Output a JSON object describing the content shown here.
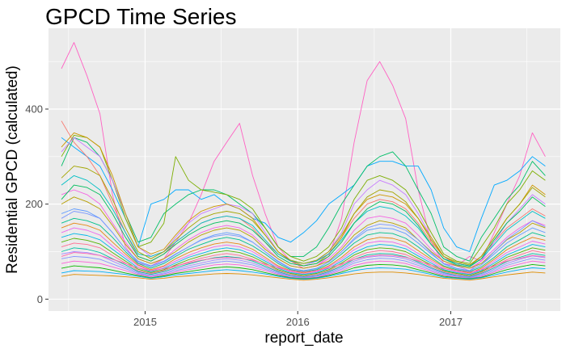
{
  "chart_data": {
    "type": "line",
    "title": "GPCD Time Series",
    "xlabel": "report_date",
    "ylabel": "Residential GPCD (calculated)",
    "x_ticks": [
      "2015",
      "2016",
      "2017"
    ],
    "y_ticks": [
      0,
      200,
      400
    ],
    "xlim": [
      "2014-05-15",
      "2017-09-20"
    ],
    "ylim": [
      -25,
      570
    ],
    "grid": true,
    "legend": "none",
    "panel_color": "#ebebeb",
    "grid_color": "#ffffff",
    "x": [
      "2014-06-15",
      "2014-07-15",
      "2014-08-15",
      "2014-09-15",
      "2014-10-15",
      "2014-11-15",
      "2014-12-15",
      "2015-01-15",
      "2015-02-15",
      "2015-03-15",
      "2015-04-15",
      "2015-05-15",
      "2015-06-15",
      "2015-07-15",
      "2015-08-15",
      "2015-09-15",
      "2015-10-15",
      "2015-11-15",
      "2015-12-15",
      "2016-01-15",
      "2016-02-15",
      "2016-03-15",
      "2016-04-15",
      "2016-05-15",
      "2016-06-15",
      "2016-07-15",
      "2016-08-15",
      "2016-09-15",
      "2016-10-15",
      "2016-11-15",
      "2016-12-15",
      "2017-01-15",
      "2017-02-15",
      "2017-03-15",
      "2017-04-15",
      "2017-05-15",
      "2017-06-15",
      "2017-07-15",
      "2017-08-15"
    ],
    "series": [
      {
        "color": "#ff61c3",
        "values": [
          485,
          540,
          470,
          390,
          220,
          110,
          75,
          70,
          85,
          120,
          160,
          220,
          290,
          330,
          370,
          260,
          180,
          110,
          80,
          65,
          70,
          90,
          170,
          330,
          460,
          500,
          450,
          380,
          230,
          120,
          75,
          70,
          90,
          80,
          140,
          200,
          260,
          350,
          300
        ]
      },
      {
        "color": "#00a9ff",
        "values": [
          340,
          320,
          300,
          280,
          230,
          170,
          110,
          200,
          210,
          230,
          230,
          210,
          220,
          200,
          190,
          170,
          160,
          130,
          120,
          140,
          165,
          200,
          220,
          240,
          280,
          290,
          290,
          280,
          280,
          230,
          150,
          110,
          100,
          170,
          240,
          250,
          270,
          300,
          280
        ]
      },
      {
        "color": "#00be67",
        "values": [
          280,
          340,
          330,
          300,
          250,
          180,
          120,
          130,
          180,
          200,
          220,
          230,
          230,
          220,
          200,
          180,
          150,
          110,
          90,
          90,
          110,
          150,
          200,
          240,
          280,
          300,
          310,
          280,
          230,
          180,
          110,
          90,
          80,
          130,
          170,
          210,
          240,
          290,
          260
        ]
      },
      {
        "color": "#f8766d",
        "values": [
          375,
          330,
          300,
          260,
          200,
          140,
          90,
          80,
          95,
          120,
          140,
          160,
          170,
          175,
          170,
          150,
          120,
          95,
          80,
          75,
          80,
          95,
          130,
          170,
          200,
          210,
          205,
          190,
          160,
          120,
          90,
          75,
          70,
          90,
          120,
          150,
          170,
          190,
          175
        ]
      },
      {
        "color": "#7cae00",
        "values": [
          300,
          345,
          340,
          320,
          250,
          170,
          110,
          120,
          160,
          300,
          250,
          230,
          225,
          220,
          210,
          190,
          150,
          110,
          90,
          80,
          90,
          110,
          150,
          210,
          250,
          260,
          250,
          230,
          190,
          140,
          95,
          80,
          75,
          110,
          150,
          200,
          230,
          270,
          250
        ]
      },
      {
        "color": "#c77cff",
        "values": [
          310,
          340,
          320,
          300,
          250,
          180,
          110,
          90,
          100,
          130,
          160,
          180,
          190,
          200,
          195,
          180,
          140,
          100,
          80,
          70,
          80,
          100,
          140,
          200,
          230,
          250,
          240,
          220,
          180,
          130,
          90,
          70,
          60,
          80,
          120,
          160,
          190,
          220,
          200
        ]
      },
      {
        "color": "#cd9600",
        "values": [
          320,
          350,
          340,
          320,
          260,
          180,
          110,
          95,
          105,
          135,
          165,
          185,
          195,
          200,
          190,
          170,
          135,
          100,
          80,
          70,
          75,
          95,
          130,
          180,
          210,
          220,
          215,
          200,
          170,
          130,
          90,
          75,
          70,
          90,
          130,
          170,
          200,
          240,
          220
        ]
      },
      {
        "color": "#00bfc4",
        "values": [
          240,
          260,
          250,
          230,
          190,
          140,
          95,
          90,
          100,
          120,
          140,
          160,
          170,
          175,
          170,
          155,
          125,
          95,
          80,
          75,
          80,
          95,
          125,
          160,
          185,
          195,
          190,
          175,
          150,
          115,
          85,
          75,
          70,
          85,
          115,
          145,
          165,
          185,
          170
        ]
      },
      {
        "color": "#f564e3",
        "values": [
          220,
          230,
          220,
          200,
          160,
          120,
          85,
          75,
          85,
          105,
          125,
          140,
          150,
          155,
          150,
          135,
          110,
          85,
          70,
          65,
          70,
          85,
          110,
          145,
          170,
          175,
          170,
          160,
          135,
          105,
          80,
          70,
          65,
          80,
          105,
          130,
          150,
          165,
          155
        ]
      },
      {
        "color": "#b79f00",
        "values": [
          200,
          215,
          205,
          190,
          155,
          115,
          85,
          75,
          85,
          100,
          120,
          135,
          145,
          150,
          145,
          130,
          105,
          85,
          70,
          65,
          70,
          80,
          105,
          135,
          155,
          165,
          160,
          150,
          125,
          100,
          80,
          70,
          65,
          75,
          100,
          125,
          140,
          160,
          150
        ]
      },
      {
        "color": "#619cff",
        "values": [
          180,
          190,
          185,
          170,
          140,
          105,
          80,
          70,
          80,
          95,
          110,
          125,
          135,
          140,
          135,
          120,
          100,
          80,
          65,
          60,
          65,
          78,
          100,
          125,
          145,
          150,
          148,
          138,
          118,
          95,
          75,
          65,
          60,
          72,
          95,
          118,
          135,
          150,
          140
        ]
      },
      {
        "color": "#00c08b",
        "values": [
          160,
          170,
          165,
          155,
          130,
          100,
          75,
          65,
          75,
          90,
          105,
          115,
          125,
          130,
          125,
          112,
          95,
          75,
          62,
          58,
          62,
          74,
          95,
          118,
          135,
          140,
          138,
          128,
          110,
          88,
          70,
          62,
          58,
          68,
          88,
          110,
          125,
          140,
          132
        ]
      },
      {
        "color": "#e68613",
        "values": [
          150,
          160,
          155,
          145,
          120,
          95,
          72,
          62,
          70,
          85,
          98,
          108,
          116,
          120,
          116,
          105,
          88,
          70,
          60,
          55,
          60,
          70,
          88,
          110,
          125,
          130,
          128,
          120,
          102,
          84,
          68,
          60,
          55,
          65,
          84,
          104,
          118,
          130,
          124
        ]
      },
      {
        "color": "#ed68ed",
        "values": [
          140,
          150,
          145,
          135,
          112,
          90,
          70,
          60,
          68,
          80,
          92,
          102,
          110,
          114,
          110,
          100,
          84,
          68,
          58,
          53,
          58,
          68,
          84,
          104,
          118,
          122,
          120,
          112,
          96,
          80,
          65,
          58,
          53,
          62,
          80,
          98,
          110,
          122,
          116
        ]
      },
      {
        "color": "#00b8e7",
        "values": [
          130,
          138,
          134,
          125,
          105,
          85,
          66,
          58,
          65,
          76,
          88,
          96,
          104,
          108,
          104,
          94,
          80,
          65,
          56,
          52,
          56,
          65,
          80,
          98,
          110,
          115,
          113,
          106,
          91,
          76,
          62,
          56,
          52,
          60,
          76,
          93,
          104,
          115,
          110
        ]
      },
      {
        "color": "#53b400",
        "values": [
          120,
          128,
          124,
          116,
          98,
          80,
          63,
          56,
          62,
          72,
          83,
          91,
          98,
          102,
          98,
          89,
          76,
          62,
          54,
          50,
          54,
          62,
          76,
          93,
          104,
          108,
          106,
          100,
          86,
          72,
          60,
          54,
          50,
          58,
          72,
          88,
          98,
          108,
          103
        ]
      },
      {
        "color": "#ff6c91",
        "values": [
          110,
          118,
          115,
          108,
          92,
          76,
          60,
          54,
          60,
          69,
          78,
          86,
          92,
          96,
          92,
          84,
          72,
          60,
          52,
          48,
          52,
          60,
          72,
          88,
          98,
          102,
          100,
          94,
          82,
          69,
          58,
          52,
          48,
          56,
          69,
          83,
          93,
          102,
          97
        ]
      },
      {
        "color": "#00c1a3",
        "values": [
          100,
          108,
          105,
          98,
          85,
          72,
          58,
          52,
          58,
          66,
          74,
          81,
          87,
          90,
          87,
          80,
          69,
          58,
          50,
          47,
          50,
          58,
          69,
          84,
          93,
          96,
          95,
          89,
          78,
          66,
          56,
          50,
          47,
          54,
          66,
          79,
          88,
          96,
          92
        ]
      },
      {
        "color": "#a58aff",
        "values": [
          95,
          100,
          98,
          92,
          80,
          68,
          56,
          50,
          55,
          63,
          70,
          76,
          82,
          85,
          82,
          76,
          66,
          56,
          49,
          46,
          49,
          56,
          66,
          80,
          88,
          91,
          90,
          85,
          75,
          64,
          54,
          49,
          46,
          52,
          63,
          75,
          84,
          91,
          87
        ]
      },
      {
        "color": "#8494ff",
        "values": [
          85,
          90,
          88,
          84,
          74,
          64,
          54,
          48,
          53,
          60,
          66,
          72,
          77,
          80,
          77,
          72,
          63,
          54,
          48,
          45,
          48,
          54,
          63,
          76,
          83,
          86,
          85,
          80,
          71,
          61,
          52,
          48,
          45,
          50,
          60,
          71,
          79,
          86,
          82
        ]
      },
      {
        "color": "#fb61d7",
        "values": [
          75,
          80,
          78,
          75,
          68,
          60,
          52,
          47,
          51,
          57,
          62,
          67,
          72,
          74,
          72,
          67,
          60,
          52,
          46,
          44,
          46,
          52,
          60,
          71,
          77,
          80,
          79,
          75,
          67,
          58,
          50,
          46,
          44,
          48,
          57,
          67,
          74,
          80,
          77
        ]
      },
      {
        "color": "#0cb702",
        "values": [
          65,
          70,
          68,
          66,
          61,
          55,
          50,
          45,
          49,
          54,
          58,
          62,
          66,
          68,
          66,
          62,
          56,
          50,
          45,
          43,
          45,
          50,
          57,
          66,
          71,
          73,
          72,
          69,
          62,
          55,
          48,
          45,
          43,
          46,
          54,
          62,
          68,
          73,
          70
        ]
      },
      {
        "color": "#00b0f6",
        "values": [
          55,
          60,
          59,
          58,
          55,
          52,
          48,
          44,
          47,
          51,
          54,
          57,
          60,
          62,
          60,
          57,
          53,
          48,
          44,
          42,
          44,
          48,
          54,
          60,
          64,
          66,
          65,
          63,
          58,
          52,
          46,
          44,
          42,
          45,
          51,
          57,
          62,
          66,
          64
        ]
      },
      {
        "color": "#de8c00",
        "values": [
          48,
          52,
          51,
          50,
          49,
          47,
          45,
          42,
          44,
          47,
          49,
          51,
          53,
          54,
          53,
          51,
          48,
          45,
          42,
          40,
          42,
          45,
          49,
          53,
          56,
          57,
          57,
          55,
          52,
          48,
          44,
          42,
          40,
          43,
          47,
          51,
          54,
          57,
          55
        ]
      },
      {
        "color": "#ff64b0",
        "values": [
          90,
          98,
          96,
          92,
          84,
          75,
          66,
          60,
          64,
          70,
          76,
          82,
          86,
          88,
          86,
          82,
          74,
          66,
          60,
          57,
          60,
          66,
          74,
          84,
          90,
          93,
          92,
          88,
          80,
          72,
          64,
          60,
          57,
          62,
          70,
          80,
          86,
          92,
          89
        ]
      },
      {
        "color": "#00bd5c",
        "values": [
          210,
          240,
          235,
          220,
          180,
          130,
          90,
          80,
          95,
          115,
          135,
          150,
          160,
          165,
          160,
          145,
          120,
          90,
          75,
          70,
          75,
          90,
          120,
          160,
          190,
          205,
          200,
          185,
          155,
          115,
          85,
          72,
          68,
          85,
          125,
          160,
          185,
          215,
          195
        ]
      },
      {
        "color": "#7997ff",
        "values": [
          170,
          185,
          180,
          170,
          140,
          105,
          78,
          68,
          78,
          94,
          110,
          124,
          132,
          136,
          132,
          120,
          100,
          78,
          64,
          60,
          64,
          78,
          100,
          128,
          150,
          158,
          155,
          145,
          125,
          98,
          74,
          64,
          60,
          72,
          100,
          126,
          145,
          165,
          152
        ]
      },
      {
        "color": "#a3a500",
        "values": [
          255,
          280,
          275,
          260,
          210,
          150,
          100,
          85,
          100,
          125,
          150,
          170,
          180,
          185,
          180,
          165,
          135,
          100,
          82,
          75,
          82,
          100,
          135,
          180,
          215,
          230,
          225,
          205,
          170,
          125,
          90,
          78,
          72,
          90,
          130,
          170,
          200,
          235,
          215
        ]
      }
    ]
  }
}
